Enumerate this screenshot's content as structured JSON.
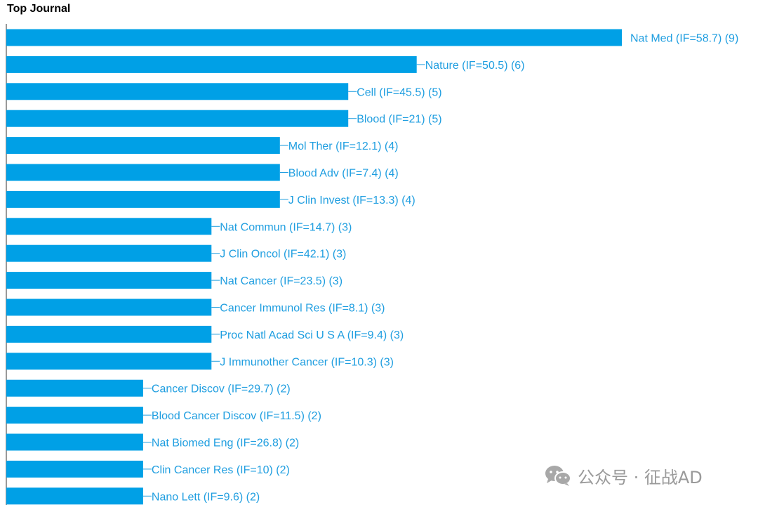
{
  "chart_data": {
    "type": "bar",
    "orientation": "horizontal",
    "title": "Top Journal",
    "categories": [
      "Nat Med (IF=58.7) (9)",
      "Nature (IF=50.5) (6)",
      "Cell (IF=45.5) (5)",
      "Blood (IF=21) (5)",
      "Mol Ther (IF=12.1) (4)",
      "Blood Adv (IF=7.4) (4)",
      "J Clin Invest (IF=13.3) (4)",
      "Nat Commun (IF=14.7) (3)",
      "J Clin Oncol (IF=42.1) (3)",
      "Nat Cancer (IF=23.5) (3)",
      "Cancer Immunol Res (IF=8.1) (3)",
      "Proc Natl Acad Sci U S A (IF=9.4) (3)",
      "J Immunother Cancer (IF=10.3) (3)",
      "Cancer Discov (IF=29.7) (2)",
      "Blood Cancer Discov (IF=11.5) (2)",
      "Nat Biomed Eng (IF=26.8) (2)",
      "Clin Cancer Res (IF=10) (2)",
      "Nano Lett (IF=9.6) (2)"
    ],
    "values": [
      9,
      6,
      5,
      5,
      4,
      4,
      4,
      3,
      3,
      3,
      3,
      3,
      3,
      2,
      2,
      2,
      2,
      2
    ],
    "xlim": [
      0,
      9
    ],
    "xlabel": "",
    "ylabel": "",
    "grid": false,
    "legend": "none",
    "colors": {
      "bar": "#00a0e6",
      "label": "#1f9ee0",
      "axis": "#333333"
    }
  },
  "watermark": {
    "icon": "wechat-icon",
    "text": "公众号 · 征战AD"
  }
}
